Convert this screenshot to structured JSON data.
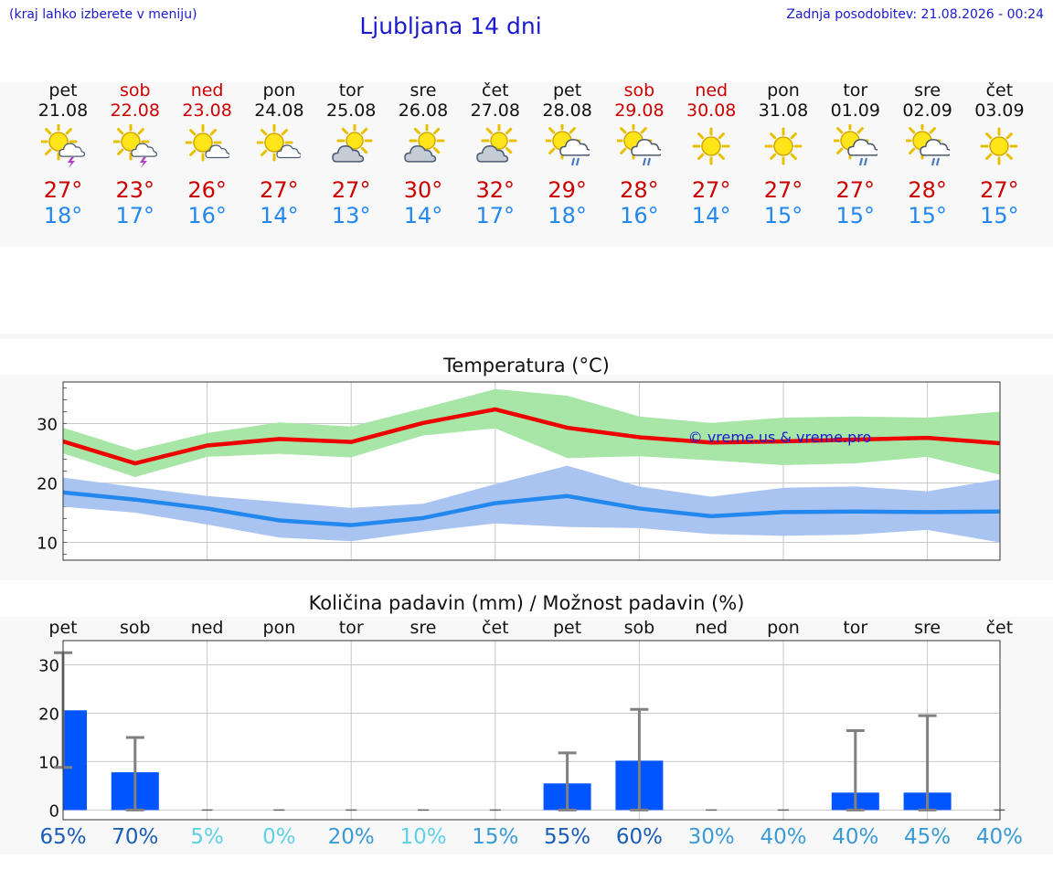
{
  "header": {
    "left_note": "(kraj lahko izberete v meniju)",
    "title": "Ljubljana 14 dni",
    "right_note": "Zadnja posodobitev: 21.08.2026 - 00:24"
  },
  "colors": {
    "link_blue": "#1a1acc",
    "weekend_red": "#cc0000",
    "max_line": "#ee0000",
    "max_band": "#a8e6a8",
    "min_line": "#2288ee",
    "min_band": "#aac4f2",
    "bar": "#0055ff",
    "error_bar": "#808080"
  },
  "days": [
    {
      "name": "pet",
      "date": "21.08",
      "weekend": false,
      "icon": "sun-cloud-thunder-icon",
      "max": "27°",
      "min": "18°"
    },
    {
      "name": "sob",
      "date": "22.08",
      "weekend": true,
      "icon": "sun-cloud-thunder-icon",
      "max": "23°",
      "min": "17°"
    },
    {
      "name": "ned",
      "date": "23.08",
      "weekend": true,
      "icon": "sun-small-cloud-icon",
      "max": "26°",
      "min": "16°"
    },
    {
      "name": "pon",
      "date": "24.08",
      "weekend": false,
      "icon": "sun-small-cloud-icon",
      "max": "27°",
      "min": "14°"
    },
    {
      "name": "tor",
      "date": "25.08",
      "weekend": false,
      "icon": "sun-cloud-icon",
      "max": "27°",
      "min": "13°"
    },
    {
      "name": "sre",
      "date": "26.08",
      "weekend": false,
      "icon": "sun-cloud-icon",
      "max": "30°",
      "min": "14°"
    },
    {
      "name": "čet",
      "date": "27.08",
      "weekend": false,
      "icon": "sun-cloud-icon",
      "max": "32°",
      "min": "17°"
    },
    {
      "name": "pet",
      "date": "28.08",
      "weekend": false,
      "icon": "sun-cloud-rain-icon",
      "max": "29°",
      "min": "18°"
    },
    {
      "name": "sob",
      "date": "29.08",
      "weekend": true,
      "icon": "sun-cloud-rain-icon",
      "max": "28°",
      "min": "16°"
    },
    {
      "name": "ned",
      "date": "30.08",
      "weekend": true,
      "icon": "sun-icon",
      "max": "27°",
      "min": "14°"
    },
    {
      "name": "pon",
      "date": "31.08",
      "weekend": false,
      "icon": "sun-icon",
      "max": "27°",
      "min": "15°"
    },
    {
      "name": "tor",
      "date": "01.09",
      "weekend": false,
      "icon": "sun-cloud-rain-icon",
      "max": "27°",
      "min": "15°"
    },
    {
      "name": "sre",
      "date": "02.09",
      "weekend": false,
      "icon": "sun-cloud-rain-icon",
      "max": "28°",
      "min": "15°"
    },
    {
      "name": "čet",
      "date": "03.09",
      "weekend": false,
      "icon": "sun-icon",
      "max": "27°",
      "min": "15°"
    }
  ],
  "temperature_chart": {
    "title": "Temperatura (°C)",
    "watermark": "© vreme.us & vreme.pro",
    "ylim": [
      7,
      37
    ],
    "yticks": [
      10,
      20,
      30
    ],
    "max_series": [
      27,
      23.3,
      26.3,
      27.4,
      26.9,
      30.1,
      32.4,
      29.3,
      27.7,
      26.8,
      27.0,
      27.3,
      27.6,
      26.7
    ],
    "max_upper": [
      29.3,
      25.5,
      28.4,
      30.2,
      29.5,
      32.6,
      35.8,
      34.7,
      31.2,
      30.1,
      31.0,
      31.2,
      31.0,
      32.0
    ],
    "max_lower": [
      25.0,
      21.0,
      24.4,
      24.9,
      24.3,
      28.0,
      29.2,
      24.2,
      24.5,
      23.8,
      23.0,
      23.3,
      24.4,
      21.4
    ],
    "min_series": [
      18.4,
      17.2,
      15.7,
      13.7,
      12.9,
      14.1,
      16.6,
      17.8,
      15.7,
      14.4,
      15.1,
      15.2,
      15.1,
      15.2
    ],
    "min_upper": [
      20.9,
      19.3,
      17.8,
      16.8,
      15.8,
      16.5,
      19.8,
      22.9,
      19.4,
      17.7,
      19.2,
      19.4,
      18.6,
      20.6
    ],
    "min_lower": [
      16.0,
      15.0,
      13.0,
      10.8,
      10.2,
      11.8,
      13.2,
      12.6,
      12.4,
      11.4,
      11.1,
      11.3,
      12.1,
      10.0
    ]
  },
  "chart_data": {
    "type": "bar",
    "title": "Količina padavin (mm) / Možnost padavin (%)",
    "categories": [
      "pet",
      "sob",
      "ned",
      "pon",
      "tor",
      "sre",
      "čet",
      "pet",
      "sob",
      "ned",
      "pon",
      "tor",
      "sre",
      "čet"
    ],
    "values": [
      20.6,
      7.8,
      0,
      0,
      0,
      0,
      0,
      5.5,
      10.2,
      0,
      0,
      3.6,
      3.6,
      0
    ],
    "error_high": [
      32.5,
      15.0,
      0,
      0,
      0,
      0,
      0,
      11.8,
      20.8,
      0,
      0,
      16.4,
      19.5,
      0
    ],
    "error_low": [
      8.8,
      0,
      0,
      0,
      0,
      0,
      0,
      0,
      0,
      0,
      0,
      0,
      0,
      0
    ],
    "ylim": [
      -2,
      35
    ],
    "yticks": [
      0,
      10,
      20,
      30
    ],
    "probabilities": [
      "65%",
      "70%",
      "5%",
      "0%",
      "20%",
      "10%",
      "15%",
      "55%",
      "60%",
      "30%",
      "40%",
      "40%",
      "45%",
      "40%"
    ],
    "probability_colors": [
      "#1a5db5",
      "#1a5db5",
      "#5fd0e6",
      "#5fd0e6",
      "#3a9ad6",
      "#5fd0e6",
      "#3a9ad6",
      "#1a5db5",
      "#1a5db5",
      "#3a9ad6",
      "#3a9ad6",
      "#3a9ad6",
      "#3a9ad6",
      "#3a9ad6"
    ]
  }
}
